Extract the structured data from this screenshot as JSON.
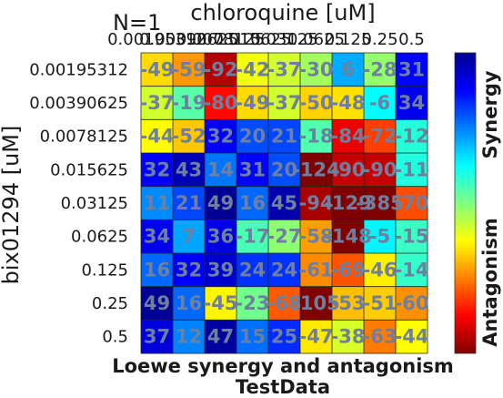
{
  "chart_data": {
    "type": "heatmap",
    "n_label": "N=1",
    "x_title": "chloroquine [uM]",
    "y_title": "bix01294 [uM]",
    "x_categories": [
      "0.00195312",
      "0.00390625",
      "0.0078125",
      "0.015625",
      "0.03125",
      "0.0625",
      "0.125",
      "0.25",
      "0.5"
    ],
    "y_categories": [
      "0.00195312",
      "0.00390625",
      "0.0078125",
      "0.015625",
      "0.03125",
      "0.0625",
      "0.125",
      "0.25",
      "0.5"
    ],
    "values": [
      [
        -49,
        -59,
        -92,
        -42,
        -37,
        -30,
        6,
        -28,
        31
      ],
      [
        -37,
        -19,
        -80,
        -49,
        -37,
        -50,
        -48,
        -6,
        34
      ],
      [
        -44,
        -52,
        32,
        20,
        21,
        -18,
        -84,
        -72,
        -12
      ],
      [
        32,
        43,
        14,
        31,
        20,
        -124,
        -90,
        -90,
        -11
      ],
      [
        11,
        21,
        49,
        16,
        45,
        -94,
        -129,
        -385,
        -70
      ],
      [
        34,
        7,
        36,
        -17,
        -27,
        -58,
        -148,
        -5,
        -15
      ],
      [
        16,
        32,
        39,
        24,
        24,
        -61,
        -69,
        -46,
        -14
      ],
      [
        49,
        16,
        -45,
        -23,
        -68,
        -105,
        -53,
        -51,
        -60
      ],
      [
        37,
        12,
        47,
        15,
        25,
        -47,
        -38,
        -63,
        -44
      ]
    ],
    "colorbar": {
      "top_label": "Synergy",
      "bottom_label": "Antagonism",
      "colormap": "jet",
      "range": [
        -100,
        50
      ]
    },
    "xlabel": "Loewe synergy and antagonism",
    "subtitle": "TestData"
  }
}
